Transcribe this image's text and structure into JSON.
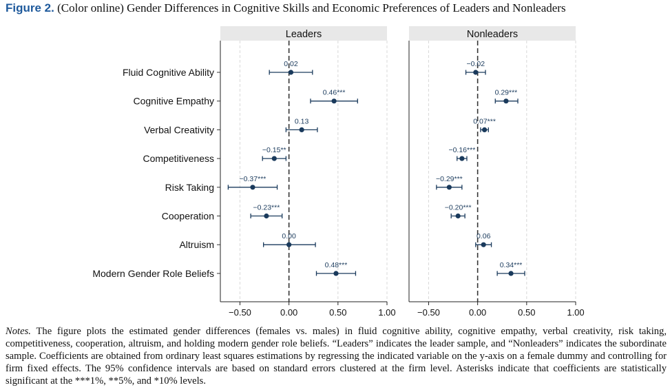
{
  "figure": {
    "label": "Figure 2.",
    "title": "(Color online) Gender Differences in Cognitive Skills and Economic Preferences of Leaders and Nonleaders"
  },
  "notes": {
    "label": "Notes.",
    "text": "The figure plots the estimated gender differences (females vs. males) in fluid cognitive ability, cognitive empathy, verbal creativity, risk taking, competitiveness, cooperation, altruism, and holding modern gender role beliefs. “Leaders” indicates the leader sample, and “Nonleaders” indicates the subordinate sample. Coefficients are obtained from ordinary least squares estimations by regressing the indicated variable on the y-axis on a female dummy and controlling for firm fixed effects. The 95% confidence intervals are based on standard errors clustered at the firm level. Asterisks indicate that coefficients are statistically significant at the ***1%, **5%, and *10% levels."
  },
  "chart_data": {
    "type": "scatter",
    "categories": [
      "Fluid Cognitive Ability",
      "Cognitive Empathy",
      "Verbal Creativity",
      "Competitiveness",
      "Risk Taking",
      "Cooperation",
      "Altruism",
      "Modern Gender Role Beliefs"
    ],
    "xlim": [
      -0.7,
      1.0
    ],
    "xticks": [
      -0.5,
      0.0,
      0.5,
      1.0
    ],
    "xtick_labels": [
      "−0.50",
      "0.00",
      "0.50",
      "1.00"
    ],
    "grid": "vertical dashed",
    "colors": {
      "marker": "#1a3a5c",
      "zero_line": "#333333",
      "panel_header": "#e8e8e8"
    },
    "panels": [
      {
        "name": "Leaders",
        "points": [
          {
            "value": 0.02,
            "ci": [
              -0.2,
              0.24
            ],
            "label": "0.02"
          },
          {
            "value": 0.46,
            "ci": [
              0.22,
              0.7
            ],
            "label": "0.46***"
          },
          {
            "value": 0.13,
            "ci": [
              -0.03,
              0.29
            ],
            "label": "0.13"
          },
          {
            "value": -0.15,
            "ci": [
              -0.27,
              -0.03
            ],
            "label": "−0.15**"
          },
          {
            "value": -0.37,
            "ci": [
              -0.62,
              -0.12
            ],
            "label": "−0.37***"
          },
          {
            "value": -0.23,
            "ci": [
              -0.39,
              -0.07
            ],
            "label": "−0.23***"
          },
          {
            "value": 0.0,
            "ci": [
              -0.26,
              0.27
            ],
            "label": "0.00"
          },
          {
            "value": 0.48,
            "ci": [
              0.28,
              0.68
            ],
            "label": "0.48***"
          }
        ]
      },
      {
        "name": "Nonleaders",
        "points": [
          {
            "value": -0.02,
            "ci": [
              -0.12,
              0.08
            ],
            "label": "−0.02"
          },
          {
            "value": 0.29,
            "ci": [
              0.18,
              0.41
            ],
            "label": "0.29***"
          },
          {
            "value": 0.07,
            "ci": [
              0.03,
              0.11
            ],
            "label": "0.07***"
          },
          {
            "value": -0.16,
            "ci": [
              -0.21,
              -0.11
            ],
            "label": "−0.16***"
          },
          {
            "value": -0.29,
            "ci": [
              -0.42,
              -0.16
            ],
            "label": "−0.29***"
          },
          {
            "value": -0.2,
            "ci": [
              -0.27,
              -0.13
            ],
            "label": "−0.20***"
          },
          {
            "value": 0.06,
            "ci": [
              -0.02,
              0.14
            ],
            "label": "0.06"
          },
          {
            "value": 0.34,
            "ci": [
              0.2,
              0.48
            ],
            "label": "0.34***"
          }
        ]
      }
    ]
  }
}
